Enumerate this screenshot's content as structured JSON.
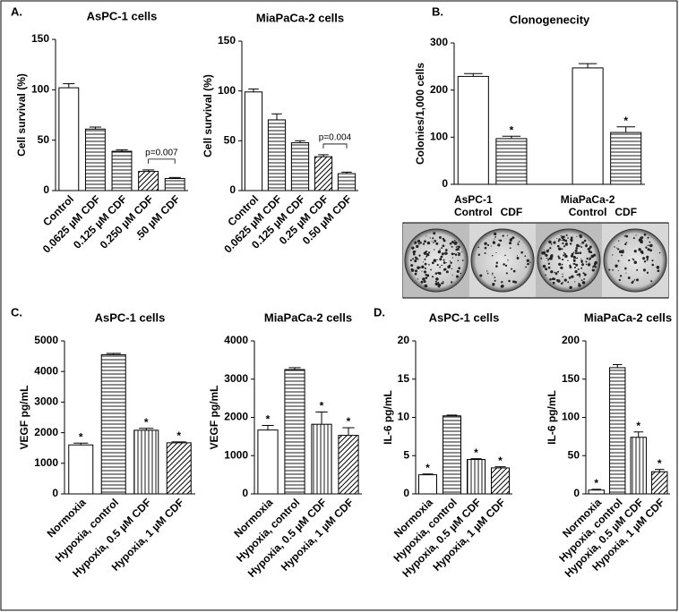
{
  "chart_data": [
    {
      "type": "bar",
      "panel": "A.",
      "title": "AsPC-1 cells",
      "ylabel": "Cell survival (%)",
      "categories": [
        "Control",
        "0.0625 µM CDF",
        "0.125 µM CDF",
        "0.250 µM CDF",
        ".50 µM CDF"
      ],
      "values": [
        102,
        61,
        39,
        19,
        12
      ],
      "errors": [
        4,
        2,
        1.5,
        1.5,
        1
      ],
      "patterns": [
        "none",
        "horizontal",
        "horizontal",
        "diagonal",
        "horizontal"
      ],
      "brackets": [
        {
          "label": "p=0.007",
          "categories": [
            "0.250 µM CDF",
            ".50 µM CDF"
          ]
        }
      ],
      "ylim": [
        0,
        150
      ],
      "yticks": [
        0,
        50,
        100,
        150
      ],
      "color": "#000000"
    },
    {
      "type": "bar",
      "title": "MiaPaCa-2 cells",
      "ylabel": "Cell survival (%)",
      "categories": [
        "Control",
        "0.0625 µM CDF",
        "0.125 µM CDF",
        "0.25 µM CDF",
        "0.50 µM CDF"
      ],
      "values": [
        99,
        71,
        48,
        34,
        17
      ],
      "errors": [
        3,
        6,
        2,
        2,
        1.5
      ],
      "patterns": [
        "none",
        "horizontal",
        "horizontal",
        "diagonal",
        "horizontal"
      ],
      "brackets": [
        {
          "label": "p=0.004",
          "categories": [
            "0.25 µM CDF",
            "0.50 µM CDF"
          ]
        }
      ],
      "ylim": [
        0,
        150
      ],
      "yticks": [
        0,
        50,
        100,
        150
      ],
      "color": "#000000"
    },
    {
      "type": "grouped_bar",
      "panel": "B.",
      "title": "Clonogenecity",
      "ylabel": "Colonies/1,000 cells",
      "groups": [
        "AsPC-1",
        "MiaPaCa-2"
      ],
      "categories": [
        "Control",
        "CDF",
        "Control",
        "CDF"
      ],
      "values": [
        229,
        97,
        247,
        110
      ],
      "errors": [
        6,
        5,
        9,
        12
      ],
      "significance": [
        null,
        "*",
        null,
        "*"
      ],
      "patterns": [
        "none",
        "horizontal",
        "none",
        "horizontal"
      ],
      "ylim": [
        0,
        300
      ],
      "yticks": [
        0,
        100,
        200,
        300
      ],
      "color": "#000000"
    },
    {
      "type": "bar",
      "panel": "C.",
      "title": "AsPC-1 cells",
      "ylabel": "VEGF pg/mL",
      "categories": [
        "Normoxia",
        "Hypoxia, control",
        "Hypoxia, 0.5 µM CDF",
        "Hypoxia, 1 µM CDF"
      ],
      "values": [
        1600,
        4550,
        2080,
        1670
      ],
      "errors": [
        60,
        40,
        60,
        30
      ],
      "significance": [
        "*",
        null,
        "*",
        "*"
      ],
      "patterns": [
        "none",
        "horizontal",
        "vertical",
        "diagonal"
      ],
      "ylim": [
        0,
        5000
      ],
      "yticks": [
        0,
        1000,
        2000,
        3000,
        4000,
        5000
      ],
      "color": "#000000"
    },
    {
      "type": "bar",
      "title": "MiaPaCa-2 cells",
      "ylabel": "VEGF pg/mL",
      "categories": [
        "Normoxia",
        "Hypoxia, control",
        "Hypoxia, 0.5 µM CDF",
        "Hypoxia, 1 µM CDF"
      ],
      "values": [
        1670,
        3250,
        1820,
        1530
      ],
      "errors": [
        120,
        50,
        320,
        200
      ],
      "significance": [
        "*",
        null,
        "*",
        "*"
      ],
      "patterns": [
        "none",
        "horizontal",
        "vertical",
        "diagonal"
      ],
      "ylim": [
        0,
        4000
      ],
      "yticks": [
        0,
        1000,
        2000,
        3000,
        4000
      ],
      "color": "#000000"
    },
    {
      "type": "bar",
      "panel": "D.",
      "title": "AsPC-1 cells",
      "ylabel": "IL-6 pg/mL",
      "categories": [
        "Normoxia",
        "Hypoxia, control",
        "Hypoxia, 0.5 µM CDF",
        "Hypoxia, 1 µM CDF"
      ],
      "values": [
        2.5,
        10.2,
        4.5,
        3.4
      ],
      "errors": [
        0.1,
        0.1,
        0.1,
        0.15
      ],
      "significance": [
        "*",
        null,
        "*",
        "*"
      ],
      "patterns": [
        "none",
        "horizontal",
        "vertical",
        "diagonal"
      ],
      "ylim": [
        0,
        20
      ],
      "yticks": [
        0,
        5,
        10,
        15,
        20
      ],
      "color": "#000000"
    },
    {
      "type": "bar",
      "title": "MiaPaCa-2 cells",
      "ylabel": "IL-6 pg/mL",
      "categories": [
        "Normoxia",
        "Hypoxia, control",
        "Hypoxia, 0.5 µM CDF",
        "Hypoxia, 1 µM CDF"
      ],
      "values": [
        5,
        165,
        74,
        29
      ],
      "errors": [
        1,
        4,
        7,
        3
      ],
      "significance": [
        "*",
        null,
        "*",
        "*"
      ],
      "patterns": [
        "none",
        "horizontal",
        "vertical",
        "diagonal"
      ],
      "ylim": [
        0,
        200
      ],
      "yticks": [
        0,
        50,
        100,
        150,
        200
      ],
      "color": "#000000"
    }
  ]
}
